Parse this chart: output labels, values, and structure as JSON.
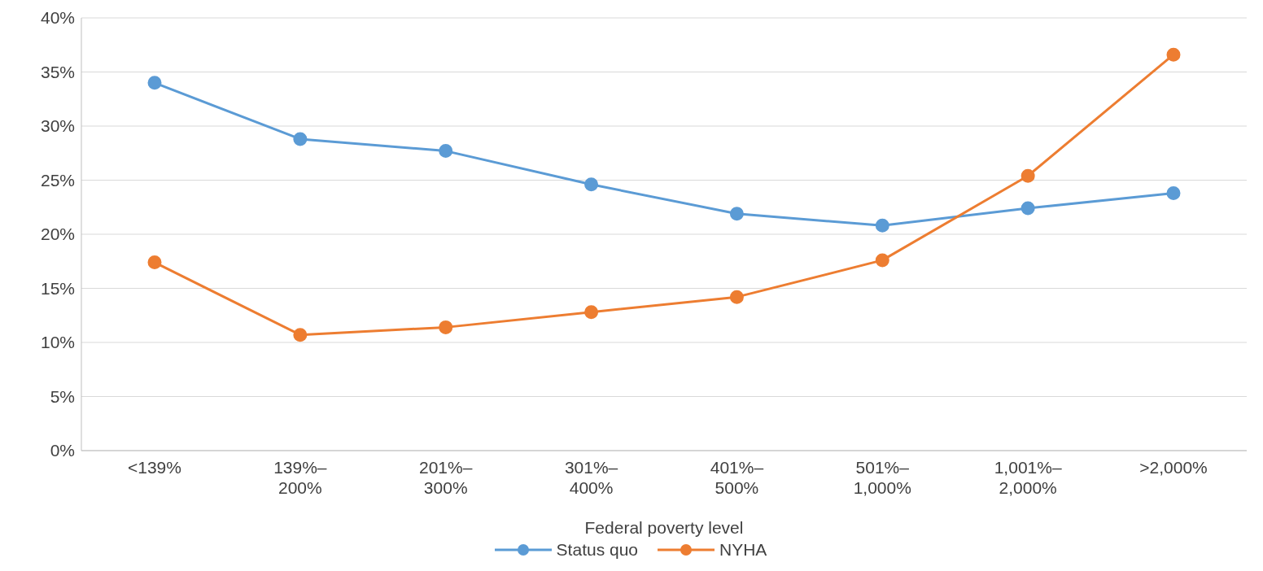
{
  "chart_data": {
    "type": "line",
    "xlabel": "Federal poverty level",
    "categories": [
      "<139%",
      "139%–\n200%",
      "201%–\n300%",
      "301%–\n400%",
      "401%–\n500%",
      "501%–\n1,000%",
      "1,001%–\n2,000%",
      ">2,000%"
    ],
    "series": [
      {
        "name": "Status quo",
        "color": "#5b9bd5",
        "values": [
          34.0,
          28.8,
          27.7,
          24.6,
          21.9,
          20.8,
          22.4,
          23.8
        ]
      },
      {
        "name": "NYHA",
        "color": "#ed7d31",
        "values": [
          17.4,
          10.7,
          11.4,
          12.8,
          14.2,
          17.6,
          25.4,
          36.6
        ]
      }
    ],
    "ylim": [
      0,
      40
    ],
    "yticks": [
      {
        "value": 0,
        "label": "0%"
      },
      {
        "value": 5,
        "label": "5%"
      },
      {
        "value": 10,
        "label": "10%"
      },
      {
        "value": 15,
        "label": "15%"
      },
      {
        "value": 20,
        "label": "20%"
      },
      {
        "value": 25,
        "label": "25%"
      },
      {
        "value": 30,
        "label": "30%"
      },
      {
        "value": 35,
        "label": "35%"
      },
      {
        "value": 40,
        "label": "40%"
      }
    ],
    "grid": "y",
    "legend": "bottom",
    "marker": "circle",
    "line_style": "solid"
  }
}
